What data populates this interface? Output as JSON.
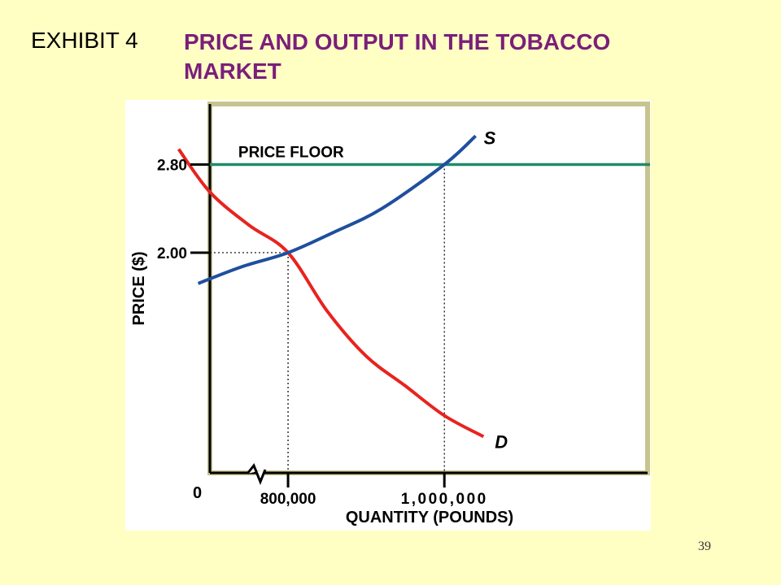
{
  "slide": {
    "exhibit_label": "EXHIBIT 4",
    "title": "PRICE AND OUTPUT IN THE TOBACCO MARKET",
    "page_number": "39"
  },
  "colors": {
    "background": "#ffffc4",
    "title": "#7a1f7a",
    "supply": "#1f4f9e",
    "demand": "#e8231f",
    "price_floor": "#1f8a6a",
    "plot_border": "#c8c48f"
  },
  "chart_data": {
    "type": "line",
    "title": "",
    "xlabel": "QUANTITY (POUNDS)",
    "ylabel": "PRICE ($)",
    "xlim": [
      700000,
      1260000
    ],
    "ylim": [
      0,
      3.35
    ],
    "x_broken_axis": true,
    "grid": false,
    "x_ticks": [
      {
        "value": 800000,
        "label": "800,000"
      },
      {
        "value": 1000000,
        "label": "1,000,000"
      }
    ],
    "y_ticks": [
      {
        "value": 2.0,
        "label": "2.00"
      },
      {
        "value": 2.8,
        "label": "2.80"
      }
    ],
    "origin_label": "0",
    "series": [
      {
        "name": "S",
        "x": [
          685000,
          740000,
          800000,
          860000,
          920000,
          1000000,
          1040000
        ],
        "y": [
          1.72,
          1.87,
          2.0,
          2.19,
          2.4,
          2.8,
          3.06
        ]
      },
      {
        "name": "D",
        "x": [
          660000,
          700000,
          750000,
          800000,
          850000,
          900000,
          950000,
          1000000,
          1050000
        ],
        "y": [
          2.94,
          2.55,
          2.25,
          2.0,
          1.47,
          1.06,
          0.79,
          0.52,
          0.33
        ]
      }
    ],
    "reference_lines": [
      {
        "label": "PRICE FLOOR",
        "y": 2.8
      }
    ],
    "guide_points": [
      {
        "x": 800000,
        "y": 2.0
      },
      {
        "x": 1000000,
        "y": 2.8
      }
    ]
  }
}
